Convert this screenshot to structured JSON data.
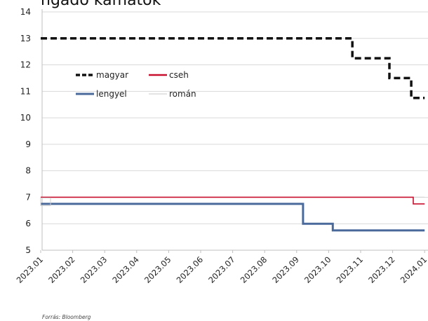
{
  "title_fragment": "ngadó kamatok",
  "source": "Forrás: Bloomberg",
  "chart_data": {
    "type": "line",
    "ylim": [
      5,
      14
    ],
    "yticks": [
      "5",
      "6",
      "7",
      "8",
      "9",
      "10",
      "11",
      "12",
      "13",
      "14"
    ],
    "categories": [
      "2023.01",
      "2023.02",
      "2023.03",
      "2023.04",
      "2023.05",
      "2023.06",
      "2023.07",
      "2023.08",
      "2023.09",
      "2023.10",
      "2023.11",
      "2023.12",
      "2024.01"
    ],
    "legend": {
      "position": "top-left",
      "columns": 2
    },
    "grid": "horizontal",
    "series": [
      {
        "name": "magyar",
        "color": "#111111",
        "style": "dashed",
        "steps": [
          [
            "2023.01",
            13.0
          ],
          [
            "2023.10.24",
            12.25
          ],
          [
            "2023.11.28",
            11.5
          ],
          [
            "2023.12.19",
            10.75
          ],
          [
            "2024.01",
            10.75
          ]
        ]
      },
      {
        "name": "cseh",
        "color": "#c8102e",
        "style": "solid",
        "steps": [
          [
            "2023.01",
            7.0
          ],
          [
            "2023.12.21",
            6.75
          ],
          [
            "2024.01",
            6.75
          ]
        ]
      },
      {
        "name": "lengyel",
        "color": "#4a6a9b",
        "style": "solid",
        "steps": [
          [
            "2023.01",
            6.75
          ],
          [
            "2023.09.07",
            6.0
          ],
          [
            "2023.10.05",
            5.75
          ],
          [
            "2024.01",
            5.75
          ]
        ]
      },
      {
        "name": "román",
        "color": "#d4d4d4",
        "style": "solid",
        "steps": [
          [
            "2023.01",
            7.0
          ],
          [
            "2024.01",
            7.0
          ]
        ]
      }
    ]
  }
}
